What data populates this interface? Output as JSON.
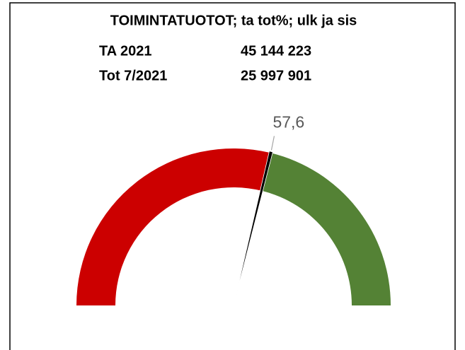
{
  "chart_data": {
    "type": "gauge",
    "title": "TOIMINTATUOTOT; ta tot%; ulk ja sis",
    "info": [
      [
        "TA 2021",
        "45 144 223"
      ],
      [
        "Tot 7/2021",
        "25 997 901"
      ]
    ],
    "value": 57.6,
    "value_label": "57,6",
    "ylim": [
      0,
      100
    ],
    "color": "#cc0000",
    "rest_color": "#548235",
    "needle_color": "#000000"
  }
}
